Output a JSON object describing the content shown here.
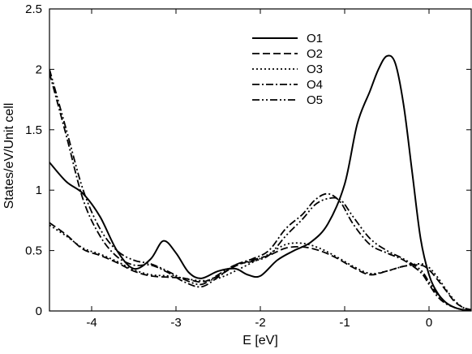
{
  "chart_data": {
    "type": "line",
    "title": "",
    "xlabel": "E [eV]",
    "ylabel": "States/eV/Unit cell",
    "xlim": [
      -4.5,
      0.5
    ],
    "ylim": [
      0,
      2.5
    ],
    "grid": false,
    "legend_position": "top-center",
    "xticks": [
      -4,
      -3,
      -2,
      -1,
      0
    ],
    "xtick_labels": [
      "-4",
      "-3",
      "-2",
      "-1",
      "0"
    ],
    "yticks": [
      0,
      0.5,
      1,
      1.5,
      2,
      2.5
    ],
    "ytick_labels": [
      "0",
      "0.5",
      "1",
      "1.5",
      "2",
      "2.5"
    ],
    "series": [
      {
        "name": "O1",
        "dash": "solid",
        "x": [
          -4.5,
          -4.3,
          -4.1,
          -3.9,
          -3.7,
          -3.5,
          -3.3,
          -3.15,
          -3.0,
          -2.85,
          -2.7,
          -2.5,
          -2.3,
          -2.15,
          -2.0,
          -1.8,
          -1.6,
          -1.4,
          -1.2,
          -1.0,
          -0.85,
          -0.7,
          -0.6,
          -0.5,
          -0.4,
          -0.3,
          -0.2,
          -0.1,
          0.0,
          0.1,
          0.2,
          0.3,
          0.4,
          0.5
        ],
        "y": [
          1.23,
          1.07,
          0.97,
          0.78,
          0.5,
          0.35,
          0.43,
          0.58,
          0.48,
          0.32,
          0.27,
          0.33,
          0.35,
          0.3,
          0.29,
          0.42,
          0.5,
          0.57,
          0.72,
          1.05,
          1.55,
          1.82,
          2.0,
          2.11,
          2.05,
          1.7,
          1.15,
          0.6,
          0.3,
          0.15,
          0.07,
          0.03,
          0.01,
          0.0
        ]
      },
      {
        "name": "O2",
        "dash": "dashed",
        "x": [
          -4.5,
          -4.3,
          -4.1,
          -3.9,
          -3.7,
          -3.5,
          -3.3,
          -3.1,
          -2.9,
          -2.7,
          -2.5,
          -2.3,
          -2.1,
          -1.9,
          -1.7,
          -1.5,
          -1.3,
          -1.1,
          -0.9,
          -0.7,
          -0.5,
          -0.3,
          -0.1,
          0.0,
          0.1,
          0.2,
          0.3,
          0.4,
          0.5
        ],
        "y": [
          0.73,
          0.63,
          0.51,
          0.46,
          0.4,
          0.33,
          0.29,
          0.28,
          0.27,
          0.24,
          0.29,
          0.37,
          0.42,
          0.46,
          0.52,
          0.53,
          0.5,
          0.44,
          0.36,
          0.3,
          0.33,
          0.37,
          0.38,
          0.34,
          0.26,
          0.17,
          0.08,
          0.03,
          0.01
        ]
      },
      {
        "name": "O3",
        "dash": "dotted",
        "x": [
          -4.5,
          -4.3,
          -4.1,
          -3.9,
          -3.7,
          -3.5,
          -3.3,
          -3.1,
          -2.9,
          -2.7,
          -2.5,
          -2.3,
          -2.1,
          -1.9,
          -1.7,
          -1.5,
          -1.3,
          -1.1,
          -0.9,
          -0.7,
          -0.5,
          -0.3,
          -0.1,
          0.0,
          0.1,
          0.2,
          0.3,
          0.4,
          0.5
        ],
        "y": [
          0.71,
          0.62,
          0.52,
          0.47,
          0.41,
          0.34,
          0.3,
          0.29,
          0.27,
          0.25,
          0.27,
          0.33,
          0.4,
          0.47,
          0.55,
          0.56,
          0.52,
          0.45,
          0.37,
          0.31,
          0.33,
          0.37,
          0.39,
          0.36,
          0.28,
          0.18,
          0.09,
          0.03,
          0.01
        ]
      },
      {
        "name": "O4",
        "dash": "dashdot",
        "x": [
          -4.5,
          -4.3,
          -4.1,
          -3.9,
          -3.7,
          -3.5,
          -3.3,
          -3.1,
          -2.9,
          -2.7,
          -2.5,
          -2.3,
          -2.1,
          -1.9,
          -1.7,
          -1.5,
          -1.35,
          -1.2,
          -1.05,
          -0.9,
          -0.7,
          -0.5,
          -0.3,
          -0.1,
          0.0,
          0.1,
          0.2,
          0.3,
          0.4,
          0.5
        ],
        "y": [
          1.97,
          1.45,
          0.92,
          0.62,
          0.45,
          0.38,
          0.38,
          0.32,
          0.24,
          0.2,
          0.28,
          0.38,
          0.43,
          0.5,
          0.68,
          0.8,
          0.92,
          0.97,
          0.9,
          0.72,
          0.55,
          0.48,
          0.42,
          0.32,
          0.22,
          0.12,
          0.06,
          0.03,
          0.01,
          0.0
        ]
      },
      {
        "name": "O5",
        "dash": "dashdotdot",
        "x": [
          -4.5,
          -4.3,
          -4.1,
          -3.9,
          -3.7,
          -3.5,
          -3.3,
          -3.1,
          -2.9,
          -2.7,
          -2.5,
          -2.3,
          -2.1,
          -1.9,
          -1.7,
          -1.5,
          -1.35,
          -1.2,
          -1.05,
          -0.9,
          -0.7,
          -0.5,
          -0.3,
          -0.1,
          0.0,
          0.1,
          0.2,
          0.3,
          0.4,
          0.5
        ],
        "y": [
          2.0,
          1.5,
          1.0,
          0.68,
          0.5,
          0.42,
          0.39,
          0.33,
          0.26,
          0.22,
          0.3,
          0.38,
          0.41,
          0.46,
          0.62,
          0.76,
          0.88,
          0.93,
          0.92,
          0.78,
          0.6,
          0.5,
          0.43,
          0.34,
          0.24,
          0.14,
          0.07,
          0.03,
          0.01,
          0.0
        ]
      }
    ]
  }
}
